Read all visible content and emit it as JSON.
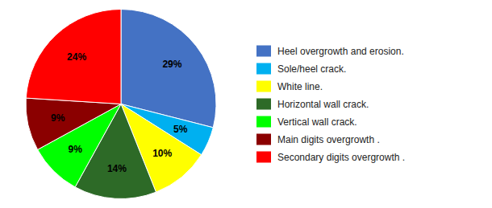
{
  "chart_data": {
    "type": "pie",
    "categories": [
      "Heel overgrowth and erosion.",
      "Sole/heel crack.",
      "White line.",
      "Horizontal wall crack.",
      "Vertical wall crack.",
      "Main digits overgrowth .",
      "Secondary digits overgrowth ."
    ],
    "values": [
      29,
      5,
      10,
      14,
      9,
      9,
      24
    ],
    "value_labels": [
      "29%",
      "5%",
      "10%",
      "14%",
      "9%",
      "9%",
      "24%"
    ],
    "colors": [
      "#4472C4",
      "#00B0F0",
      "#FFFF00",
      "#2D6A27",
      "#00FF00",
      "#8B0000",
      "#FF0000"
    ],
    "data_labels": true,
    "legend": "right"
  }
}
